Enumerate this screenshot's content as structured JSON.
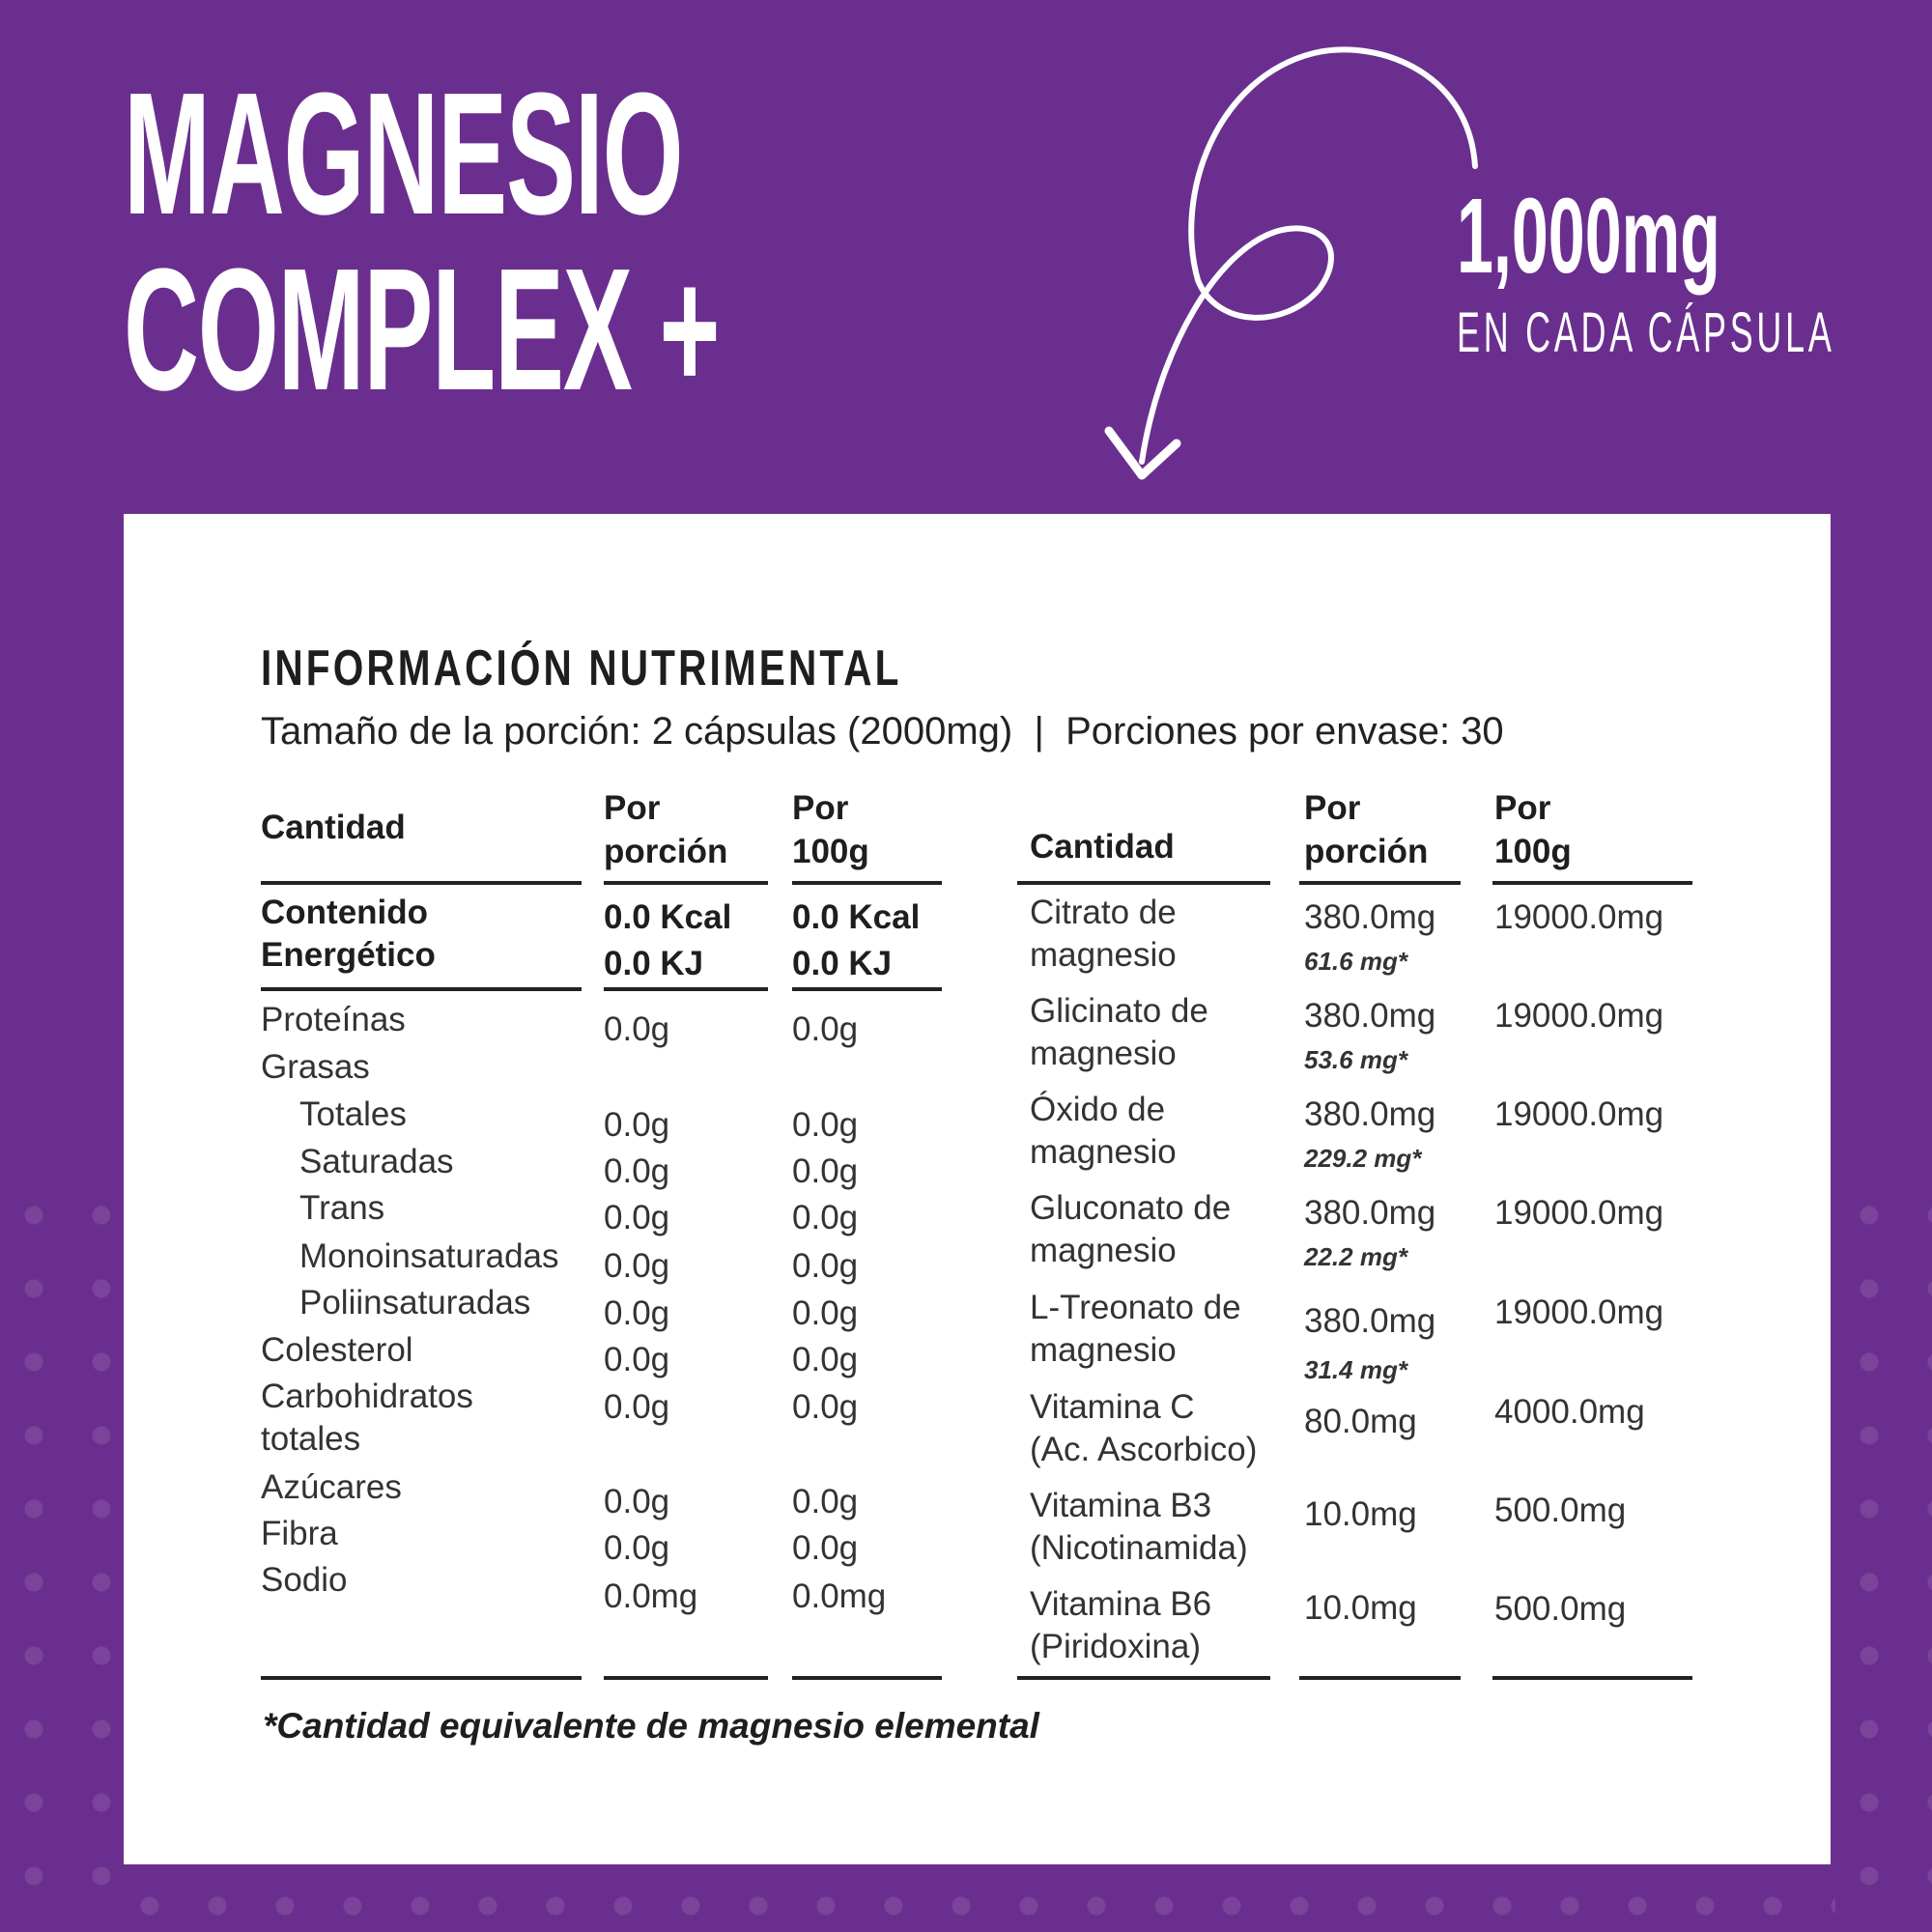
{
  "title": {
    "line1": "MAGNESIO",
    "line2": "COMPLEX +"
  },
  "badge": {
    "amount": "1,000mg",
    "caption": "EN CADA CÁPSULA"
  },
  "colors": {
    "background": "#6a2f8e",
    "card": "#ffffff",
    "text": "#2a2a2a"
  },
  "icons": {
    "arrow": "curly-arrow-down-icon"
  },
  "panel": {
    "heading": "INFORMACIÓN NUTRIMENTAL",
    "serving": "Tamaño de la porción: 2 cápsulas (2000mg)  |  Porciones por envase: 30",
    "left_headers": {
      "label": "Cantidad",
      "per_serving": [
        "Por",
        "porción"
      ],
      "per_100g": [
        "Por",
        "100g"
      ]
    },
    "energy": {
      "label": [
        "Contenido",
        "Energético"
      ],
      "per_serving": [
        "0.0 Kcal",
        "0.0 KJ"
      ],
      "per_100g": [
        "0.0 Kcal",
        "0.0 KJ"
      ]
    },
    "left_rows": [
      {
        "label": "Proteínas",
        "per_serving": "0.0g",
        "per_100g": "0.0g"
      },
      {
        "label": "Grasas",
        "per_serving": "",
        "per_100g": ""
      },
      {
        "label": "Totales",
        "per_serving": "0.0g",
        "per_100g": "0.0g"
      },
      {
        "label": "Saturadas",
        "per_serving": "0.0g",
        "per_100g": "0.0g"
      },
      {
        "label": "Trans",
        "per_serving": "0.0g",
        "per_100g": "0.0g"
      },
      {
        "label": "Monoinsaturadas",
        "per_serving": "0.0g",
        "per_100g": "0.0g"
      },
      {
        "label": "Poliinsaturadas",
        "per_serving": "0.0g",
        "per_100g": "0.0g"
      },
      {
        "label": "Colesterol",
        "per_serving": "0.0g",
        "per_100g": "0.0g"
      },
      {
        "label": "Carbohidratos totales",
        "per_serving": "0.0g",
        "per_100g": "0.0g"
      },
      {
        "label": "Azúcares",
        "per_serving": "0.0g",
        "per_100g": "0.0g"
      },
      {
        "label": "Fibra",
        "per_serving": "0.0g",
        "per_100g": "0.0g"
      },
      {
        "label": "Sodio",
        "per_serving": "0.0mg",
        "per_100g": "0.0mg"
      }
    ],
    "right_headers": {
      "label": "Cantidad",
      "per_serving": [
        "Por",
        "porción"
      ],
      "per_100g": [
        "Por",
        "100g"
      ]
    },
    "right_rows": [
      {
        "label": [
          "Citrato de",
          "magnesio"
        ],
        "per_serving": "380.0mg",
        "elemental": "61.6 mg*",
        "per_100g": "19000.0mg"
      },
      {
        "label": [
          "Glicinato de",
          "magnesio"
        ],
        "per_serving": "380.0mg",
        "elemental": "53.6 mg*",
        "per_100g": "19000.0mg"
      },
      {
        "label": [
          "Óxido de",
          "magnesio"
        ],
        "per_serving": "380.0mg",
        "elemental": "229.2 mg*",
        "per_100g": "19000.0mg"
      },
      {
        "label": [
          "Gluconato de",
          "magnesio"
        ],
        "per_serving": "380.0mg",
        "elemental": "22.2 mg*",
        "per_100g": "19000.0mg"
      },
      {
        "label": [
          "L-Treonato de",
          "magnesio"
        ],
        "per_serving": "380.0mg",
        "elemental": "31.4 mg*",
        "per_100g": "19000.0mg"
      },
      {
        "label": [
          "Vitamina C",
          "(Ac. Ascorbico)"
        ],
        "per_serving": "80.0mg",
        "elemental": "",
        "per_100g": "4000.0mg"
      },
      {
        "label": [
          "Vitamina B3",
          "(Nicotinamida)"
        ],
        "per_serving": "10.0mg",
        "elemental": "",
        "per_100g": "500.0mg"
      },
      {
        "label": [
          "Vitamina B6",
          "(Piridoxina)"
        ],
        "per_serving": "10.0mg",
        "elemental": "",
        "per_100g": "500.0mg"
      }
    ],
    "footnote": "*Cantidad equivalente de magnesio elemental"
  }
}
